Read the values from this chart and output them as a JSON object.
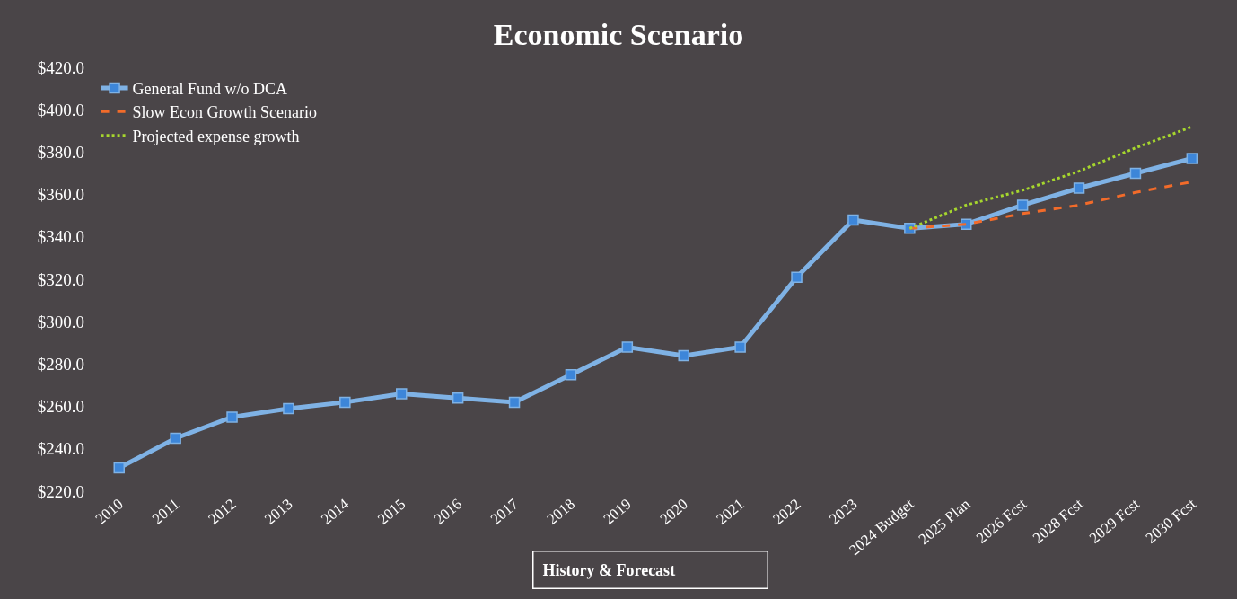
{
  "chart_data": {
    "type": "line",
    "title": "Economic Scenario",
    "categories": [
      "2010",
      "2011",
      "2012",
      "2013",
      "2014",
      "2015",
      "2016",
      "2017",
      "2018",
      "2019",
      "2020",
      "2021",
      "2022",
      "2023",
      "2024 Budget",
      "2025 Plan",
      "2026 Fcst",
      "2028 Fcst",
      "2029 Fcst",
      "2030 Fcst"
    ],
    "series": [
      {
        "name": "General Fund w/o DCA",
        "color": "#7fb2e5",
        "marker": "square",
        "line_style": "solid",
        "values": [
          231,
          245,
          255,
          259,
          262,
          266,
          264,
          262,
          275,
          288,
          284,
          288,
          321,
          348,
          344,
          346,
          355,
          363,
          370,
          377
        ]
      },
      {
        "name": "Slow Econ Growth Scenario",
        "color": "#f26b2a",
        "marker": "none",
        "line_style": "dashed",
        "values": [
          null,
          null,
          null,
          null,
          null,
          null,
          null,
          null,
          null,
          null,
          null,
          null,
          null,
          null,
          344,
          346,
          351,
          355,
          361,
          366
        ]
      },
      {
        "name": "Projected expense growth",
        "color": "#a6d62e",
        "marker": "none",
        "line_style": "dotted",
        "values": [
          null,
          null,
          null,
          null,
          null,
          null,
          null,
          null,
          null,
          null,
          null,
          null,
          null,
          null,
          344,
          355,
          362,
          371,
          382,
          392
        ]
      }
    ],
    "ylim": [
      220,
      420
    ],
    "yticks": [
      {
        "value": 220,
        "label": "$220.0"
      },
      {
        "value": 240,
        "label": "$240.0"
      },
      {
        "value": 260,
        "label": "$260.0"
      },
      {
        "value": 280,
        "label": "$280.0"
      },
      {
        "value": 300,
        "label": "$300.0"
      },
      {
        "value": 320,
        "label": "$320.0"
      },
      {
        "value": 340,
        "label": "$340.0"
      },
      {
        "value": 360,
        "label": "$360.0"
      },
      {
        "value": 380,
        "label": "$380.0"
      },
      {
        "value": 400,
        "label": "$400.0"
      },
      {
        "value": 420,
        "label": "$420.0"
      }
    ],
    "grid": false,
    "legend": "top left",
    "annotations": [
      "History & Forecast"
    ]
  }
}
